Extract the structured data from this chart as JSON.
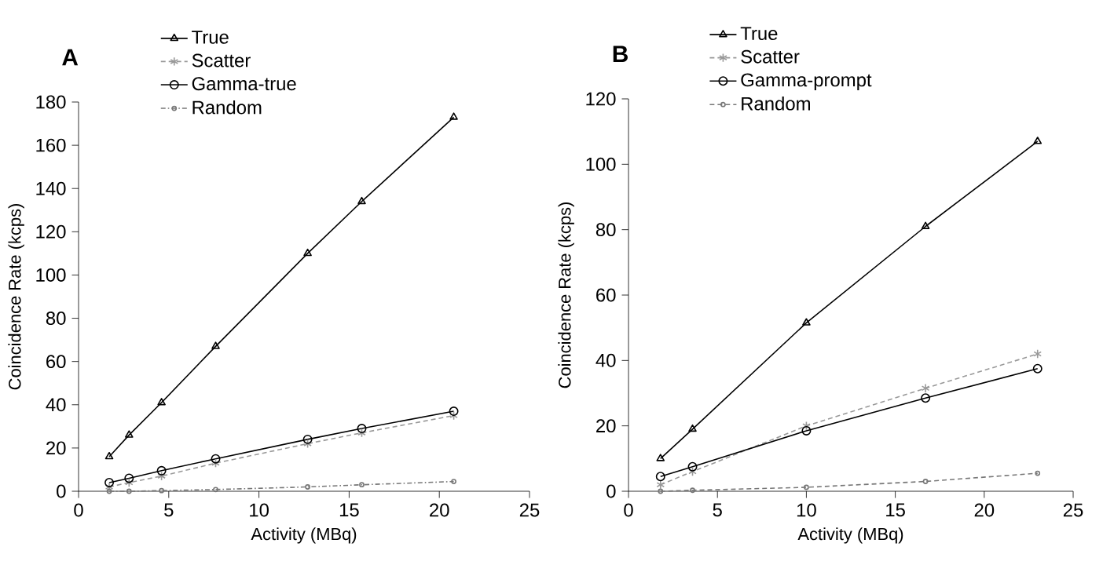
{
  "chart_data": [
    {
      "type": "line",
      "title": "A",
      "xlabel": "Activity (MBq)",
      "ylabel": "Coincidence Rate (kcps)",
      "xlim": [
        0,
        25
      ],
      "xticks": [
        0,
        5,
        10,
        15,
        20,
        25
      ],
      "ylim": [
        0,
        180
      ],
      "yticks": [
        0,
        20,
        40,
        60,
        80,
        100,
        120,
        140,
        160,
        180
      ],
      "legend": "top left",
      "grid": false,
      "x": [
        1.7,
        2.8,
        4.6,
        7.6,
        12.7,
        15.7,
        20.8
      ],
      "series": [
        {
          "name": "True",
          "color": "#000000",
          "marker": "triangle",
          "line_style": "solid",
          "values": [
            16,
            26,
            41,
            67,
            110,
            134,
            173
          ]
        },
        {
          "name": "Scatter",
          "color": "#999999",
          "marker": "cross",
          "line_style": "dashed",
          "values": [
            2,
            4,
            7,
            13,
            22,
            27,
            35
          ]
        },
        {
          "name": "Gamma-true",
          "color": "#000000",
          "marker": "circle",
          "line_style": "solid",
          "values": [
            4,
            6,
            9.5,
            15,
            24,
            29,
            37
          ]
        },
        {
          "name": "Random",
          "color": "#777777",
          "marker": "circle",
          "line_style": "dashdot",
          "values": [
            0,
            0,
            0.3,
            0.8,
            2,
            3,
            4.5
          ]
        }
      ]
    },
    {
      "type": "line",
      "title": "B",
      "xlabel": "Activity (MBq)",
      "ylabel": "Coincidence Rate (kcps)",
      "xlim": [
        0,
        25
      ],
      "xticks": [
        0,
        5,
        10,
        15,
        20,
        25
      ],
      "ylim": [
        0,
        120
      ],
      "yticks": [
        0,
        20,
        40,
        60,
        80,
        100,
        120
      ],
      "legend": "top left",
      "grid": false,
      "x": [
        1.8,
        3.6,
        10,
        16.7,
        23
      ],
      "series": [
        {
          "name": "True",
          "color": "#000000",
          "marker": "triangle",
          "line_style": "solid",
          "values": [
            10,
            19,
            51.5,
            81,
            107
          ]
        },
        {
          "name": "Scatter",
          "color": "#999999",
          "marker": "cross",
          "line_style": "dashed",
          "values": [
            2,
            6,
            20,
            31.5,
            42
          ]
        },
        {
          "name": "Gamma-prompt",
          "color": "#000000",
          "marker": "circle",
          "line_style": "solid",
          "values": [
            4.5,
            7.5,
            18.5,
            28.5,
            37.5
          ]
        },
        {
          "name": "Random",
          "color": "#777777",
          "marker": "circle",
          "line_style": "dashed",
          "values": [
            0,
            0.3,
            1.2,
            3,
            5.5
          ]
        }
      ]
    }
  ]
}
